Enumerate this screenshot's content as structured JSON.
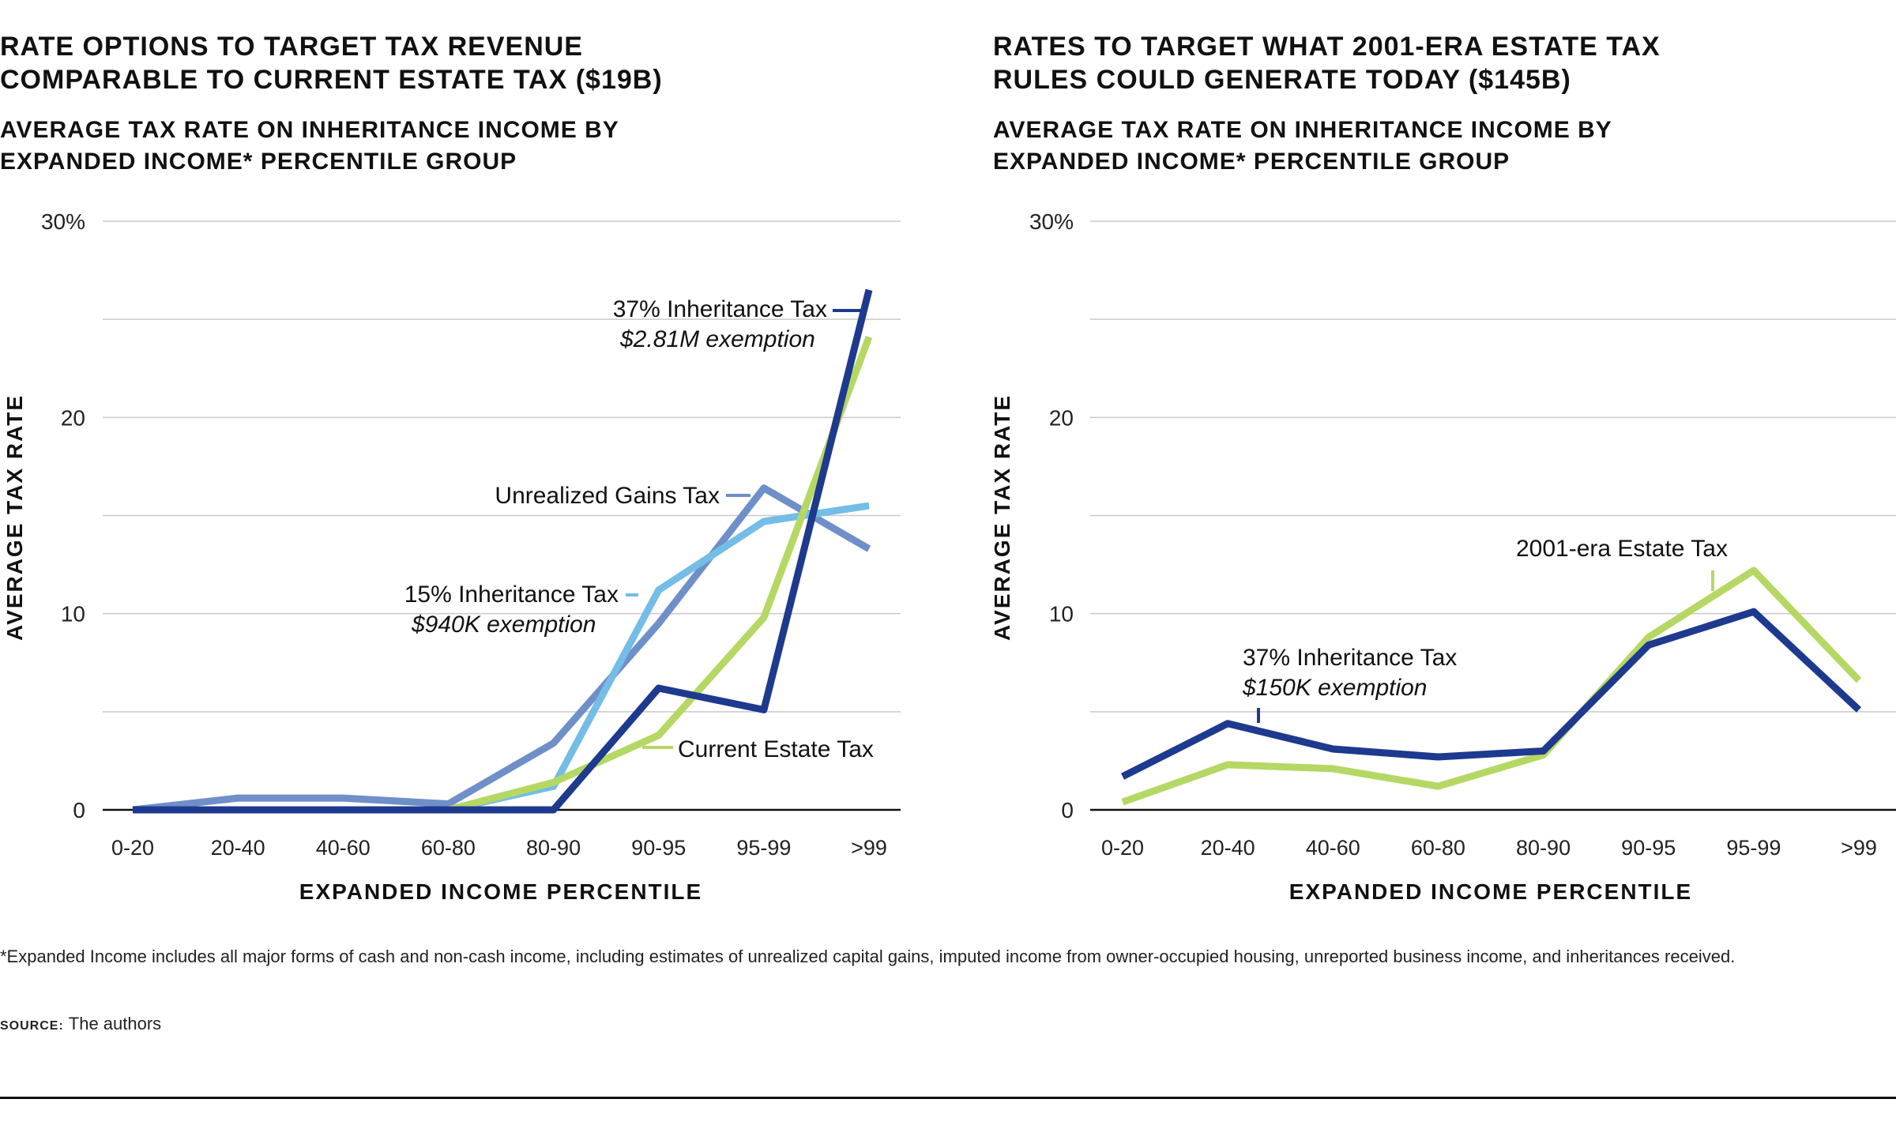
{
  "charts": {
    "left": {
      "title_lines": [
        "RATE OPTIONS TO TARGET TAX REVENUE",
        "COMPARABLE TO CURRENT ESTATE TAX ($19B)"
      ],
      "subtitle_lines": [
        "AVERAGE TAX RATE ON INHERITANCE INCOME BY",
        "EXPANDED INCOME* PERCENTILE GROUP"
      ]
    },
    "right": {
      "title_lines": [
        "RATES TO TARGET WHAT 2001-ERA ESTATE TAX",
        "RULES COULD GENERATE TODAY ($145B)"
      ],
      "subtitle_lines": [
        "AVERAGE TAX RATE ON INHERITANCE INCOME BY",
        "EXPANDED INCOME* PERCENTILE GROUP"
      ]
    }
  },
  "chart_data": [
    {
      "type": "line",
      "title": "RATE OPTIONS TO TARGET TAX REVENUE COMPARABLE TO CURRENT ESTATE TAX ($19B)",
      "subtitle": "AVERAGE TAX RATE ON INHERITANCE INCOME BY EXPANDED INCOME* PERCENTILE GROUP",
      "xlabel": "EXPANDED INCOME PERCENTILE",
      "ylabel": "AVERAGE TAX RATE",
      "categories": [
        "0-20",
        "20-40",
        "40-60",
        "60-80",
        "80-90",
        "90-95",
        "95-99",
        ">99"
      ],
      "ylim": [
        0,
        30
      ],
      "yticks": [
        {
          "value": 0,
          "label": "0"
        },
        {
          "value": 10,
          "label": "10"
        },
        {
          "value": 20,
          "label": "20"
        },
        {
          "value": 30,
          "label": "30%"
        }
      ],
      "gridlines": [
        5,
        10,
        15,
        20,
        25,
        30
      ],
      "series": [
        {
          "name": "Unrealized Gains Tax",
          "color": "#6f8fc9",
          "values": [
            0,
            0.6,
            0.6,
            0.3,
            3.4,
            9.5,
            16.4,
            13.3
          ]
        },
        {
          "name": "15% Inheritance Tax",
          "color": "#73bde6",
          "values": [
            0,
            0,
            0,
            0,
            1.2,
            11.2,
            14.7,
            15.5
          ]
        },
        {
          "name": "Current Estate Tax",
          "color": "#b5d865",
          "values": [
            0,
            0,
            0,
            0,
            1.4,
            3.8,
            9.8,
            24.1
          ]
        },
        {
          "name": "37% Inheritance Tax",
          "color": "#1e3a8f",
          "values": [
            0,
            0,
            0,
            0,
            0,
            6.2,
            5.1,
            26.5
          ]
        }
      ],
      "annotations": [
        {
          "series": "37% Inheritance Tax",
          "label": "37% Inheritance Tax",
          "note": "$2.81M exemption"
        },
        {
          "series": "Unrealized Gains Tax",
          "label": "Unrealized Gains Tax",
          "note": ""
        },
        {
          "series": "15% Inheritance Tax",
          "label": "15% Inheritance Tax",
          "note": "$940K exemption"
        },
        {
          "series": "Current Estate Tax",
          "label": "Current Estate Tax",
          "note": ""
        }
      ]
    },
    {
      "type": "line",
      "title": "RATES TO TARGET WHAT 2001-ERA ESTATE TAX RULES COULD GENERATE TODAY ($145B)",
      "subtitle": "AVERAGE TAX RATE ON INHERITANCE INCOME BY EXPANDED INCOME* PERCENTILE GROUP",
      "xlabel": "EXPANDED INCOME PERCENTILE",
      "ylabel": "AVERAGE TAX RATE",
      "categories": [
        "0-20",
        "20-40",
        "40-60",
        "60-80",
        "80-90",
        "90-95",
        "95-99",
        ">99"
      ],
      "ylim": [
        0,
        30
      ],
      "yticks": [
        {
          "value": 0,
          "label": "0"
        },
        {
          "value": 10,
          "label": "10"
        },
        {
          "value": 20,
          "label": "20"
        },
        {
          "value": 30,
          "label": "30%"
        }
      ],
      "gridlines": [
        5,
        10,
        15,
        20,
        25,
        30
      ],
      "series": [
        {
          "name": "2001-era Estate Tax",
          "color": "#b5d865",
          "values": [
            0.4,
            2.3,
            2.1,
            1.2,
            2.8,
            8.8,
            12.2,
            6.6
          ]
        },
        {
          "name": "37% Inheritance Tax",
          "color": "#1e3a8f",
          "values": [
            1.7,
            4.4,
            3.1,
            2.7,
            3.0,
            8.4,
            10.1,
            5.1
          ]
        }
      ],
      "annotations": [
        {
          "series": "2001-era Estate Tax",
          "label": "2001-era Estate Tax",
          "note": ""
        },
        {
          "series": "37% Inheritance Tax",
          "label": "37% Inheritance Tax",
          "note": "$150K exemption"
        }
      ]
    }
  ],
  "footnote": "*Expanded Income includes all major forms of cash and non-cash income, including estimates of unrealized capital gains, imputed income from owner-occupied housing, unreported business income, and inheritances received.",
  "source": {
    "label": "SOURCE:",
    "text": "The authors"
  }
}
